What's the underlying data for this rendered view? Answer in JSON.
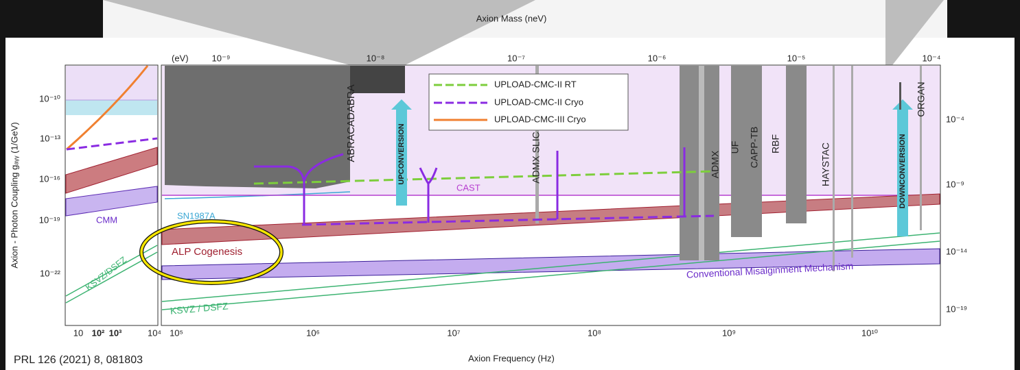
{
  "header": {
    "top_axis_title": "Axion Mass (neV)",
    "reference": "PRL 126 (2021) 8, 081803",
    "x_axis_title": "Axion Frequency (Hz)",
    "y_axis_title": "Axion - Photon Coupling gₐᵧᵧ (1/GeV)"
  },
  "top_axis": {
    "unit": "(eV)",
    "ticks": [
      "10⁻⁹",
      "10⁻⁸",
      "10⁻⁷",
      "10⁻⁶",
      "10⁻⁵",
      "10⁻⁴"
    ]
  },
  "bottom_axis": {
    "ticks": [
      "10⁵",
      "10⁶",
      "10⁷",
      "10⁸",
      "10⁹",
      "10¹⁰"
    ]
  },
  "left_panel": {
    "x_ticks": [
      "10",
      "10²",
      "10³",
      "10⁴"
    ],
    "y_ticks": [
      "10⁻¹⁰",
      "10⁻¹³",
      "10⁻¹⁶",
      "10⁻¹⁹",
      "10⁻²²"
    ],
    "labels": [
      "CMM",
      "KSVZ/DSFZ"
    ]
  },
  "right_axis": {
    "ticks": [
      "10⁻⁴",
      "10⁻⁹",
      "10⁻¹⁴",
      "10⁻¹⁹"
    ]
  },
  "legend": [
    "UPLOAD-CMC-II RT",
    "UPLOAD-CMC-II Cryo",
    "UPLOAD-CMC-III Cryo"
  ],
  "labels": {
    "abracadabra": "ABRACADABRA",
    "upconversion": "UPCONVERSION",
    "admx_slic": "ADMX SLIC",
    "admx": "ADMX",
    "uf": "UF",
    "capp": "CAPP-TB",
    "rbf": "RBF",
    "haystac": "HAYSTAC",
    "downconversion": "DOWNCONVERSION",
    "organ": "ORGAN",
    "cast": "CAST",
    "sn": "SN1987A",
    "alp": "ALP Cogenesis",
    "cmm": "Conventional Misalginment Mechanism",
    "ksvz": "KSVZ / DSFZ"
  }
}
